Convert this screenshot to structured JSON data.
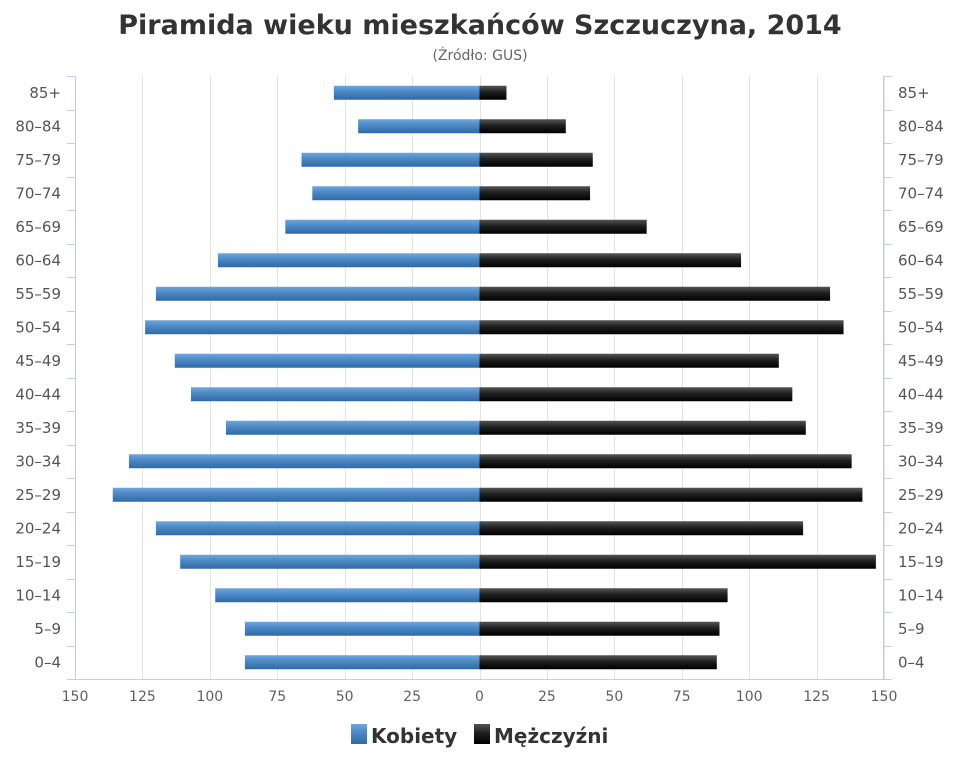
{
  "chart_data": {
    "type": "bar",
    "orientation": "horizontal",
    "layout": "population-pyramid",
    "title": "Piramida wieku mieszkańców Szczuczyna, 2014",
    "subtitle": "(Źródło: GUS)",
    "categories": [
      "85+",
      "80–84",
      "75–79",
      "70–74",
      "65–69",
      "60–64",
      "55–59",
      "50–54",
      "45–49",
      "40–44",
      "35–39",
      "30–34",
      "25–29",
      "20–24",
      "15–19",
      "10–14",
      "5–9",
      "0–4"
    ],
    "series": [
      {
        "name": "Kobiety",
        "side": "left",
        "color": "#4a87c4",
        "values": [
          54,
          45,
          66,
          62,
          72,
          97,
          120,
          124,
          113,
          107,
          94,
          130,
          136,
          120,
          111,
          98,
          87,
          87
        ]
      },
      {
        "name": "Mężczyźni",
        "side": "right",
        "color": "#1a1a1a",
        "values": [
          10,
          32,
          42,
          41,
          62,
          97,
          130,
          135,
          111,
          116,
          121,
          138,
          142,
          120,
          147,
          92,
          89,
          88
        ]
      }
    ],
    "xlim": [
      -150,
      150
    ],
    "x_ticks": [
      "150",
      "125",
      "100",
      "75",
      "50",
      "25",
      "0",
      "25",
      "50",
      "75",
      "100",
      "125",
      "150"
    ],
    "x_tick_values": [
      -150,
      -125,
      -100,
      -75,
      -50,
      -25,
      0,
      25,
      50,
      75,
      100,
      125,
      150
    ],
    "category_labels_both_sides": true,
    "grid": "vertical",
    "legend_position": "bottom-center"
  }
}
